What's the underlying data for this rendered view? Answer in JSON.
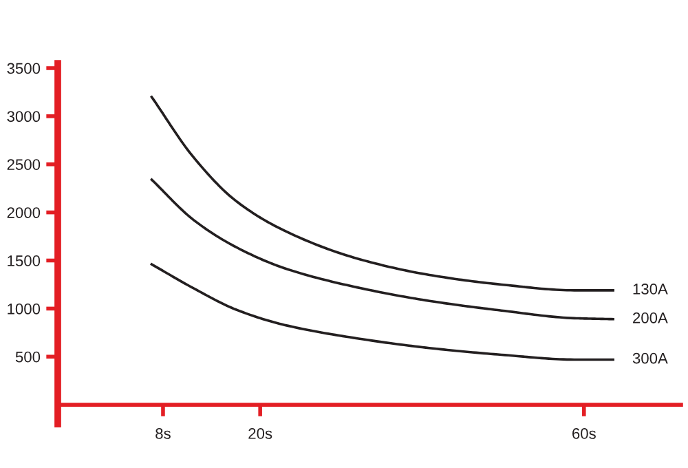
{
  "chart_data": {
    "type": "line",
    "x": [
      6.6,
      11.8,
      17,
      23,
      32,
      40.9,
      49.8,
      58.8,
      63.6
    ],
    "series": [
      {
        "name": "130A",
        "color": "#231f20",
        "values": [
          3200,
          2570,
          2120,
          1810,
          1520,
          1350,
          1250,
          1190,
          1190
        ]
      },
      {
        "name": "200A",
        "color": "#231f20",
        "values": [
          2340,
          1920,
          1640,
          1420,
          1220,
          1080,
          980,
          900,
          890
        ]
      },
      {
        "name": "300A",
        "color": "#231f20",
        "values": [
          1460,
          1210,
          990,
          830,
          690,
          590,
          520,
          470,
          470
        ]
      }
    ],
    "xlim": [
      -5,
      72
    ],
    "ylim": [
      -200,
      3550
    ],
    "xticks": [
      {
        "value": 8,
        "label": "8s"
      },
      {
        "value": 20,
        "label": "20s"
      },
      {
        "value": 60,
        "label": "60s"
      }
    ],
    "yticks": [
      500,
      1000,
      1500,
      2000,
      2500,
      3000,
      3500
    ],
    "grid": false,
    "legend": false,
    "marker": "none",
    "line_style": "solid"
  }
}
